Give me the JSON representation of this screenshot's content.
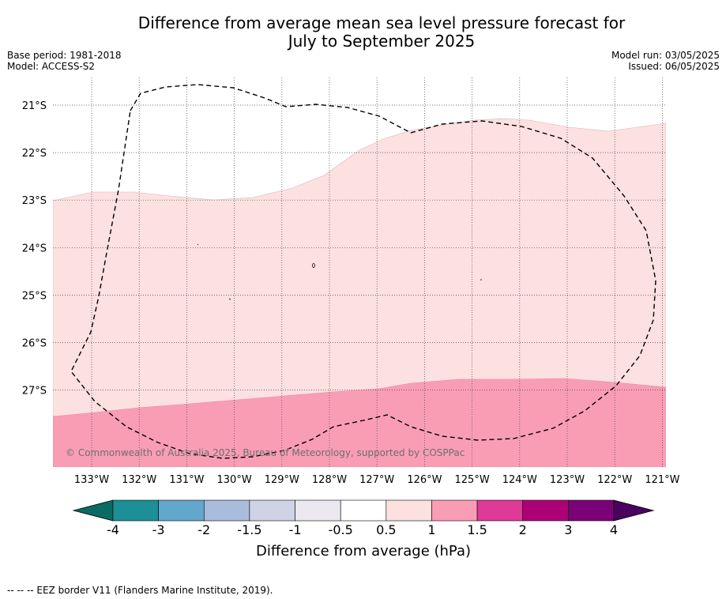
{
  "title_line1": "Difference from average mean sea level pressure forecast for",
  "title_line2": "July to September 2025",
  "base_period": "Base period: 1981-2018",
  "model": "Model: ACCESS-S2",
  "model_run": "Model run: 03/05/2025",
  "issued": "Issued: 06/05/2025",
  "copyright": "© Commonwealth of Australia 2025, Bureau of Meteorology, supported by COSPPac",
  "footer_note": "--  --  -- EEZ border V11 (Flanders Marine Institute, 2019).",
  "map": {
    "lon_labels": [
      "133°W",
      "132°W",
      "131°W",
      "130°W",
      "129°W",
      "128°W",
      "127°W",
      "126°W",
      "125°W",
      "124°W",
      "123°W",
      "122°W",
      "121°W"
    ],
    "lat_labels": [
      "21°S",
      "22°S",
      "23°S",
      "24°S",
      "25°S",
      "26°S",
      "27°S"
    ],
    "category_colors": {
      "0.5_to_1": "#fde0e0",
      "1_to_1.5": "#f99db5"
    }
  },
  "colorbar": {
    "label": "Difference from average (hPa)",
    "tick_labels": [
      "-4",
      "-3",
      "-2",
      "-1.5",
      "-1",
      "-0.5",
      "0.5",
      "1",
      "1.5",
      "2",
      "3",
      "4"
    ],
    "colors": [
      "#0b6b63",
      "#1d8f96",
      "#64a7cd",
      "#a9bcdc",
      "#d0d2e6",
      "#ebe9ef",
      "#ffffff",
      "#fde0e0",
      "#f99db5",
      "#df3a98",
      "#ad0077",
      "#7a0177",
      "#4a0160"
    ]
  }
}
